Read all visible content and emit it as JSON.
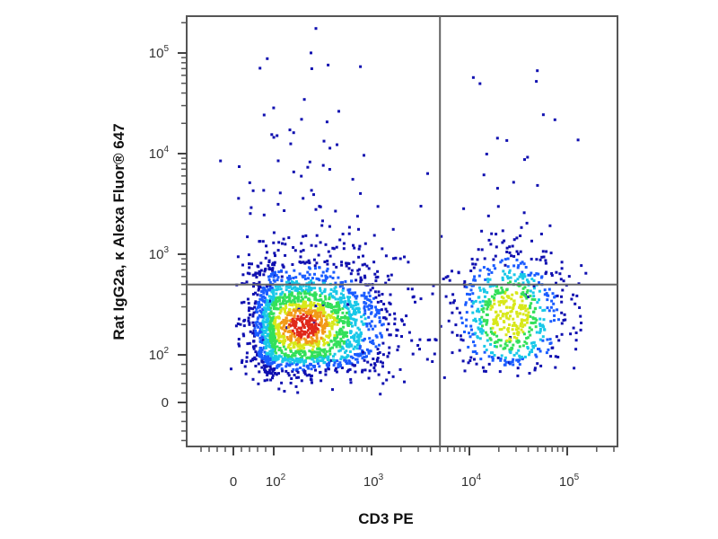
{
  "chart_data": {
    "type": "scatter",
    "subtype": "flow-cytometry-density-plot",
    "xlabel": "CD3 PE",
    "ylabel": "Rat IgG2a, κ Alexa Fluor® 647",
    "x_scale": "biexponential",
    "y_scale": "biexponential",
    "x_ticks": [
      {
        "base": "0",
        "exp": ""
      },
      {
        "base": "10",
        "exp": "2"
      },
      {
        "base": "10",
        "exp": "3"
      },
      {
        "base": "10",
        "exp": "4"
      },
      {
        "base": "10",
        "exp": "5"
      }
    ],
    "y_ticks": [
      {
        "base": "0",
        "exp": ""
      },
      {
        "base": "10",
        "exp": "2"
      },
      {
        "base": "10",
        "exp": "3"
      },
      {
        "base": "10",
        "exp": "4"
      },
      {
        "base": "10",
        "exp": "5"
      }
    ],
    "quadrant_gates": {
      "x": 5000,
      "y": 500
    },
    "populations": [
      {
        "center_x": 200,
        "center_y": 200,
        "spread_x_decades": 0.45,
        "spread_y_decades": 0.33,
        "events": 2200
      },
      {
        "center_x": 25000,
        "center_y": 250,
        "spread_x_decades": 0.28,
        "spread_y_decades": 0.33,
        "events": 700
      }
    ],
    "density_colors": [
      "#1010b0",
      "#1a5cff",
      "#19c8e8",
      "#33e05a",
      "#d8e81a",
      "#f29a18",
      "#e0281a"
    ],
    "grid": false,
    "legend": "none"
  }
}
